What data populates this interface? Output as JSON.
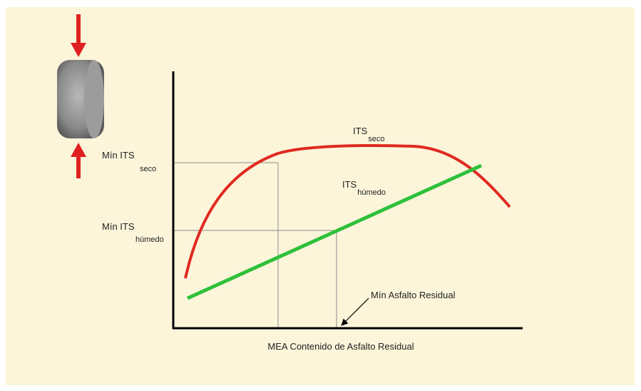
{
  "diagram": {
    "labels": [
      {
        "main": "ITS",
        "sub": "seco"
      },
      {
        "main": "ITS",
        "sub": "húmedo"
      },
      {
        "main": "Mín ITS",
        "sub": "seco"
      },
      {
        "main": "Mín ITS",
        "sub": "húmedo"
      }
    ],
    "annotation": "Mín Asfalto Residual",
    "x_axis_label": "MEA Contenido de Asfalto Residual"
  }
}
